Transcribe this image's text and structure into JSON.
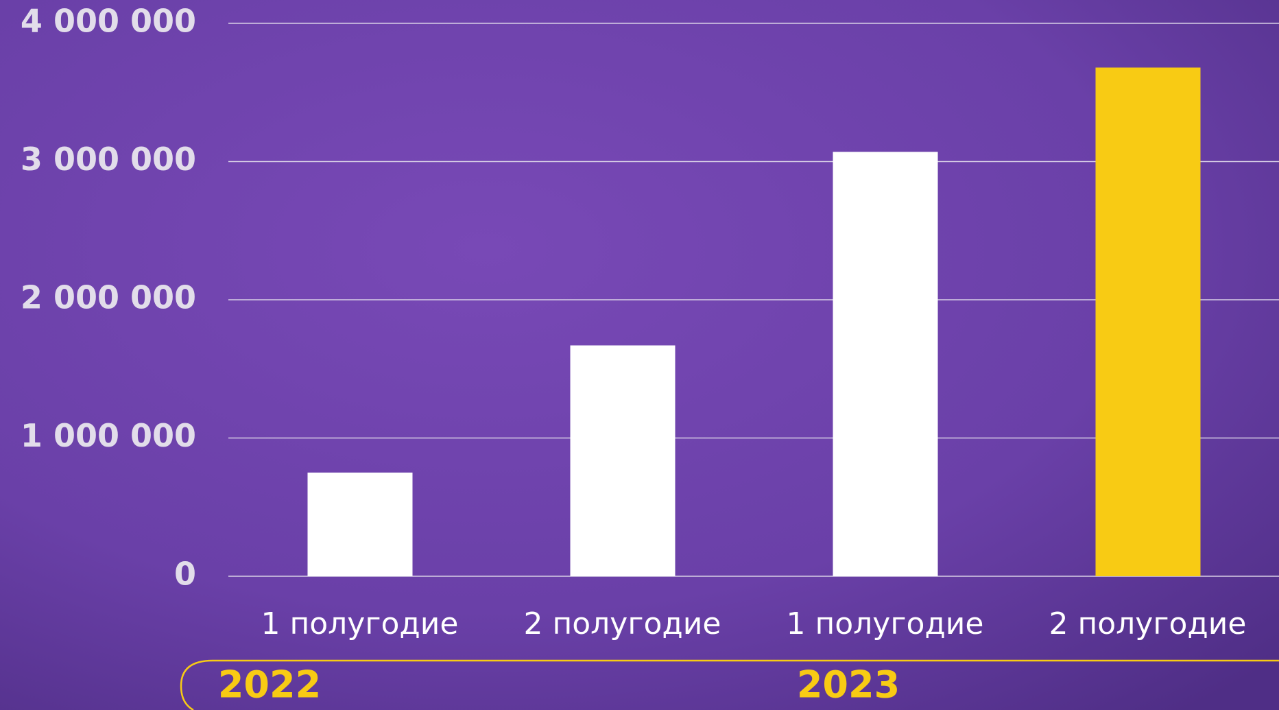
{
  "chart_data": {
    "type": "bar",
    "categories": [
      "1 полугодие",
      "2 полугодие",
      "1 полугодие",
      "2 полугодие"
    ],
    "values": [
      750000,
      1670000,
      3070000,
      3680000
    ],
    "colors": [
      "#ffffff",
      "#ffffff",
      "#ffffff",
      "#f8cb14"
    ],
    "groups": [
      {
        "label": "2022",
        "categories": [
          0,
          1
        ]
      },
      {
        "label": "2023",
        "categories": [
          2,
          3
        ]
      }
    ],
    "ylim": [
      0,
      4000000
    ],
    "yticks": [
      0,
      {
        "value": 1000000,
        "label": "1 000 000"
      },
      {
        "value": 2000000,
        "label": "2 000 000"
      },
      {
        "value": 3000000,
        "label": "3 000 000"
      },
      {
        "value": 4000000,
        "label": "4 000 000"
      }
    ],
    "grid": true
  }
}
